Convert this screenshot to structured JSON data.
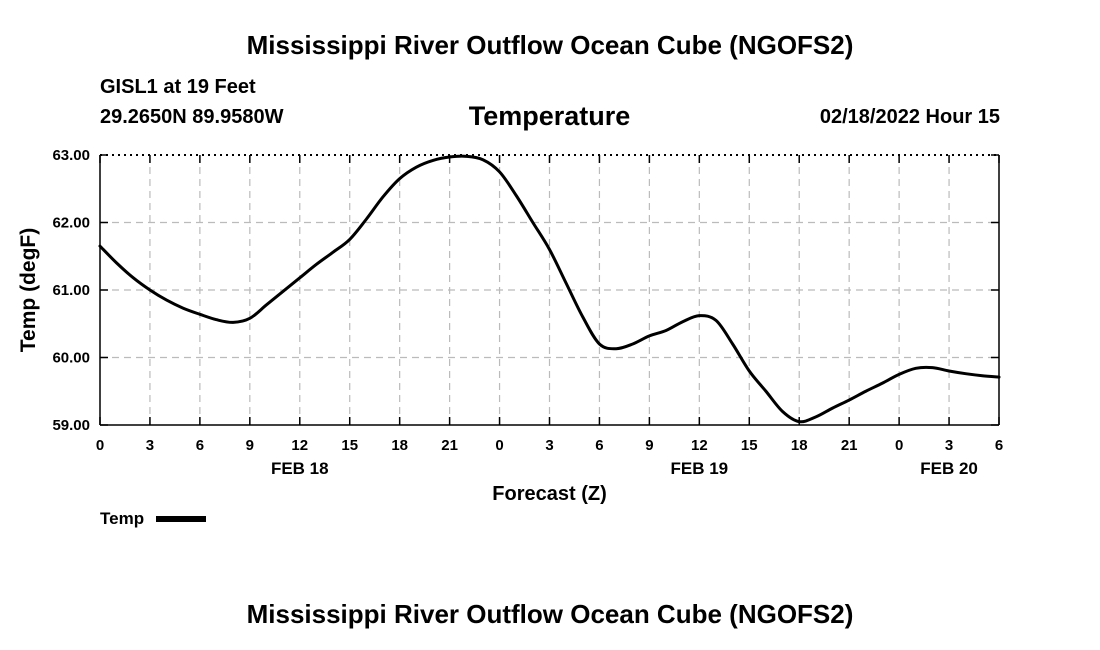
{
  "page_title": "Mississippi River Outflow Ocean Cube (NGOFS2)",
  "footer_title": "Mississippi River Outflow Ocean Cube (NGOFS2)",
  "station": "GISL1 at 19 Feet",
  "coordinates": "29.2650N  89.9580W",
  "datetime": "02/18/2022 Hour 15",
  "legend": {
    "label": "Temp",
    "color": "#000000"
  },
  "chart_data": {
    "type": "line",
    "title": "Temperature",
    "xlabel": "Forecast (Z)",
    "ylabel": "Temp (degF)",
    "ylim": [
      59.0,
      63.0
    ],
    "xlim": [
      0,
      54
    ],
    "grid": true,
    "y_ticks": [
      59.0,
      60.0,
      61.0,
      62.0,
      63.0
    ],
    "y_tick_labels": [
      "59.00",
      "60.00",
      "61.00",
      "62.00",
      "63.00"
    ],
    "x_ticks": [
      0,
      3,
      6,
      9,
      12,
      15,
      18,
      21,
      24,
      27,
      30,
      33,
      36,
      39,
      42,
      45,
      48,
      51,
      54
    ],
    "x_tick_labels": [
      "0",
      "3",
      "6",
      "9",
      "12",
      "15",
      "18",
      "21",
      "0",
      "3",
      "6",
      "9",
      "12",
      "15",
      "18",
      "21",
      "0",
      "3",
      "6"
    ],
    "day_labels": [
      {
        "x": 12,
        "label": "FEB 18"
      },
      {
        "x": 36,
        "label": "FEB 19"
      },
      {
        "x": 51,
        "label": "FEB 20"
      }
    ],
    "series": [
      {
        "name": "Temp",
        "color": "#000000",
        "x": [
          0,
          1,
          2,
          3,
          4,
          5,
          6,
          7,
          8,
          9,
          10,
          11,
          12,
          13,
          14,
          15,
          16,
          17,
          18,
          19,
          20,
          21,
          22,
          23,
          24,
          25,
          26,
          27,
          28,
          29,
          30,
          31,
          32,
          33,
          34,
          35,
          36,
          37,
          38,
          39,
          40,
          41,
          42,
          43,
          44,
          45,
          46,
          47,
          48,
          49,
          50,
          51,
          52,
          53,
          54
        ],
        "values": [
          61.65,
          61.4,
          61.18,
          61.0,
          60.85,
          60.73,
          60.64,
          60.56,
          60.52,
          60.58,
          60.78,
          60.98,
          61.18,
          61.38,
          61.56,
          61.75,
          62.05,
          62.38,
          62.65,
          62.82,
          62.92,
          62.97,
          62.98,
          62.93,
          62.75,
          62.4,
          62.0,
          61.6,
          61.1,
          60.6,
          60.2,
          60.13,
          60.2,
          60.32,
          60.4,
          60.53,
          60.62,
          60.55,
          60.2,
          59.8,
          59.5,
          59.2,
          59.05,
          59.12,
          59.25,
          59.37,
          59.5,
          59.62,
          59.75,
          59.84,
          59.85,
          59.8,
          59.76,
          59.73,
          59.71
        ]
      }
    ]
  }
}
